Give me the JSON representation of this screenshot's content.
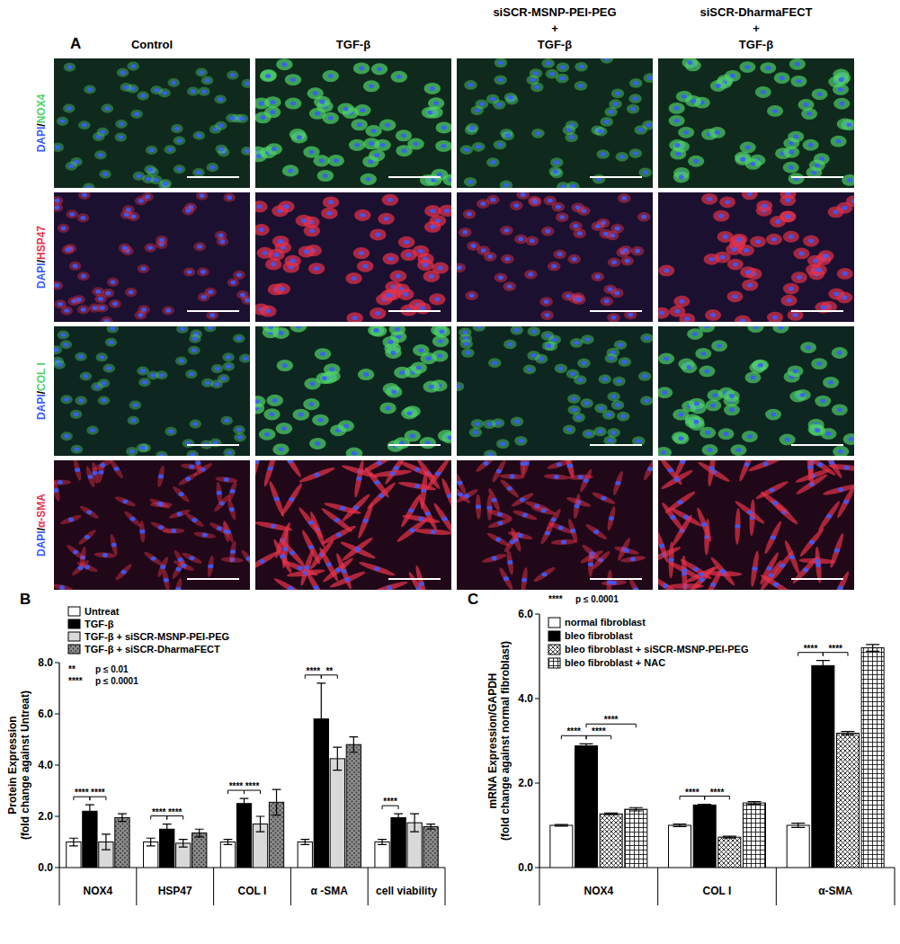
{
  "panel_a": {
    "label": "A",
    "columns": [
      [
        "Control"
      ],
      [
        "TGF-β"
      ],
      [
        "siSCR-MSNP-PEI-PEG",
        "+",
        "TGF-β"
      ],
      [
        "siSCR-DharmaFECT",
        "+",
        "TGF-β"
      ]
    ],
    "rows": [
      {
        "counterstain": "DAPI",
        "separator": "/",
        "marker": "NOX4",
        "color": "#4fd36a"
      },
      {
        "counterstain": "DAPI",
        "separator": "/",
        "marker": "HSP47",
        "color": "#e8324a"
      },
      {
        "counterstain": "DAPI",
        "separator": "/",
        "marker": "COL I",
        "color": "#4fd36a"
      },
      {
        "counterstain": "DAPI",
        "separator": "/",
        "marker": "α-SMA",
        "color": "#e8324a"
      }
    ],
    "counterstain_color": "#3b5bff"
  },
  "chart_data": [
    {
      "type": "bar",
      "panel_label": "B",
      "y_label": [
        "Protein Expression",
        "(fold change against Untreat)"
      ],
      "categories": [
        "NOX4",
        "HSP47",
        "COL I",
        "α -SMA",
        "cell viability"
      ],
      "series": [
        {
          "name": "Untreat",
          "color": "#ffffff",
          "values": [
            1.0,
            1.0,
            1.0,
            1.0,
            1.0
          ],
          "errors": [
            0.15,
            0.15,
            0.1,
            0.1,
            0.1
          ]
        },
        {
          "name": "TGF-β",
          "color": "#000000",
          "values": [
            2.2,
            1.5,
            2.5,
            5.8,
            1.95
          ],
          "errors": [
            0.25,
            0.2,
            0.2,
            1.4,
            0.15
          ]
        },
        {
          "name": "TGF-β + siSCR-MSNP-PEI-PEG",
          "color": "#d9d9d9",
          "values": [
            1.0,
            0.95,
            1.7,
            4.25,
            1.75
          ],
          "errors": [
            0.3,
            0.15,
            0.3,
            0.45,
            0.35
          ]
        },
        {
          "name": "TGF-β + siSCR-DharmaFECT",
          "color": "#8c8c8c",
          "values": [
            1.95,
            1.35,
            2.55,
            4.8,
            1.6
          ],
          "errors": [
            0.15,
            0.15,
            0.5,
            0.3,
            0.1
          ]
        }
      ],
      "ylim": [
        0,
        8
      ],
      "yticks": [
        {
          "value": 0,
          "label": "0.0"
        },
        {
          "value": 2,
          "label": "2.0"
        },
        {
          "value": 4,
          "label": "4.0"
        },
        {
          "value": 6,
          "label": "6.0"
        },
        {
          "value": 8,
          "label": "8.0"
        }
      ],
      "grid": false,
      "legend": "top-left",
      "significance": [
        {
          "label": "**",
          "text": "p ≤ 0.01"
        },
        {
          "label": "****",
          "text": "p ≤ 0.0001"
        }
      ],
      "brackets": [
        {
          "category": 0,
          "from": 0,
          "to": 1,
          "label": "****"
        },
        {
          "category": 0,
          "from": 1,
          "to": 2,
          "label": "****"
        },
        {
          "category": 1,
          "from": 0,
          "to": 1,
          "label": "****"
        },
        {
          "category": 1,
          "from": 1,
          "to": 2,
          "label": "****"
        },
        {
          "category": 2,
          "from": 0,
          "to": 1,
          "label": "****"
        },
        {
          "category": 2,
          "from": 1,
          "to": 2,
          "label": "****"
        },
        {
          "category": 3,
          "from": 0,
          "to": 1,
          "label": "****"
        },
        {
          "category": 3,
          "from": 1,
          "to": 2,
          "label": "**"
        },
        {
          "category": 4,
          "from": 0,
          "to": 1,
          "label": "****"
        }
      ]
    },
    {
      "type": "bar",
      "panel_label": "C",
      "y_label": [
        "mRNA Expression/GAPDH",
        "(fold change against normal fibroblast)"
      ],
      "categories": [
        "NOX4",
        "COL I",
        "α-SMA"
      ],
      "series": [
        {
          "name": "normal fibroblast",
          "color": "#ffffff",
          "values": [
            1.0,
            1.0,
            1.0
          ],
          "errors": [
            0.02,
            0.03,
            0.05
          ]
        },
        {
          "name": "bleo fibroblast",
          "color": "#000000",
          "values": [
            2.88,
            1.48,
            4.78
          ],
          "errors": [
            0.05,
            0.02,
            0.12
          ]
        },
        {
          "name": "bleo fibroblast + siSCR-MSNP-PEI-PEG",
          "color": "#ffffff",
          "values": [
            1.27,
            0.72,
            3.18
          ],
          "errors": [
            0.02,
            0.02,
            0.04
          ]
        },
        {
          "name": "bleo fibroblast + NAC",
          "color": "#ffffff",
          "values": [
            1.38,
            1.53,
            5.2
          ],
          "errors": [
            0.04,
            0.03,
            0.08
          ]
        }
      ],
      "ylim": [
        0,
        6
      ],
      "yticks": [
        {
          "value": 0,
          "label": "0.0"
        },
        {
          "value": 2,
          "label": "2.0"
        },
        {
          "value": 4,
          "label": "4.0"
        },
        {
          "value": 6,
          "label": "6.0"
        }
      ],
      "grid": false,
      "legend": "top-left",
      "significance": [
        {
          "label": "****",
          "text": "p ≤ 0.0001"
        }
      ],
      "brackets": [
        {
          "category": 0,
          "from": 0,
          "to": 1,
          "label": "****"
        },
        {
          "category": 0,
          "from": 1,
          "to": 2,
          "label": "****"
        },
        {
          "category": 0,
          "from": 1,
          "to": 3,
          "label": "****"
        },
        {
          "category": 1,
          "from": 0,
          "to": 1,
          "label": "****"
        },
        {
          "category": 1,
          "from": 1,
          "to": 2,
          "label": "****"
        },
        {
          "category": 2,
          "from": 0,
          "to": 1,
          "label": "****"
        },
        {
          "category": 2,
          "from": 1,
          "to": 2,
          "label": "****"
        }
      ]
    }
  ]
}
